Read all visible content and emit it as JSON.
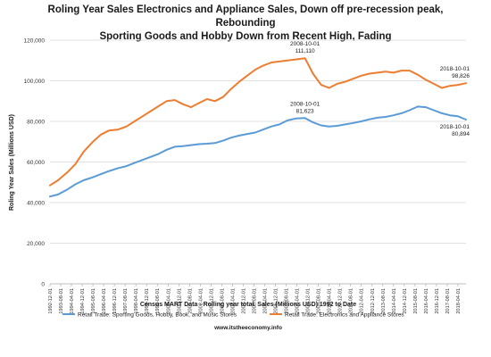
{
  "chart_data": {
    "type": "line",
    "title_line1": "Roling Year Sales Electronics and Appliance Sales, Down off pre-recession peak, Rebounding",
    "title_line2": "Sporting Goods and Hobby Down from Recent High, Fading",
    "xlabel": "Census MART Data - Rolling year total. Sales (Millions USD) 1992 to Date",
    "ylabel": "Roling Year Sales (Millions USD)",
    "source": "www.itstheeconomy.info",
    "ylim": [
      0,
      120000
    ],
    "y_ticks": [
      "0",
      "20,000",
      "40,000",
      "60,000",
      "80,000",
      "100,000",
      "120,000"
    ],
    "y_tick_values": [
      0,
      20000,
      40000,
      60000,
      80000,
      100000,
      120000
    ],
    "x_range": [
      "1992-12-01",
      "2018-10-01"
    ],
    "x_ticks": [
      "1992-12-01",
      "1993-08-01",
      "1994-04-01",
      "1994-12-01",
      "1995-08-01",
      "1996-04-01",
      "1996-12-01",
      "1997-08-01",
      "1998-04-01",
      "1998-12-01",
      "1999-08-01",
      "2000-04-01",
      "2000-12-01",
      "2001-08-01",
      "2002-04-01",
      "2002-12-01",
      "2003-08-01",
      "2004-04-01",
      "2004-12-01",
      "2005-08-01",
      "2006-04-01",
      "2006-12-01",
      "2007-08-01",
      "2008-04-01",
      "2008-12-01",
      "2009-08-01",
      "2010-04-01",
      "2010-12-01",
      "2011-08-01",
      "2012-04-01",
      "2012-12-01",
      "2013-08-01",
      "2014-04-01",
      "2014-12-01",
      "2015-08-01",
      "2016-04-01",
      "2016-12-01",
      "2017-08-01",
      "2018-04-01"
    ],
    "grid": "horizontal",
    "legend_placement": "bottom",
    "series": [
      {
        "name": "Retail Trade: Sporting Goods, Hobby, Book, and Music Stores",
        "color": "#5b9bd5",
        "points": [
          [
            "1992-12-01",
            43000
          ],
          [
            "1993-06-01",
            44000
          ],
          [
            "1994-01-01",
            46500
          ],
          [
            "1994-07-01",
            49000
          ],
          [
            "1995-01-01",
            51000
          ],
          [
            "1995-08-01",
            52500
          ],
          [
            "1996-02-01",
            54000
          ],
          [
            "1996-08-01",
            55500
          ],
          [
            "1997-03-01",
            57000
          ],
          [
            "1997-09-01",
            58000
          ],
          [
            "1998-03-01",
            59500
          ],
          [
            "1998-09-01",
            61000
          ],
          [
            "1999-03-01",
            62500
          ],
          [
            "1999-09-01",
            64000
          ],
          [
            "2000-03-01",
            66000
          ],
          [
            "2000-09-01",
            67500
          ],
          [
            "2001-03-01",
            67800
          ],
          [
            "2001-09-01",
            68300
          ],
          [
            "2002-03-01",
            68800
          ],
          [
            "2002-09-01",
            69000
          ],
          [
            "2003-03-01",
            69300
          ],
          [
            "2003-09-01",
            70500
          ],
          [
            "2004-03-01",
            72000
          ],
          [
            "2004-09-01",
            73000
          ],
          [
            "2005-03-01",
            73800
          ],
          [
            "2005-09-01",
            74500
          ],
          [
            "2006-03-01",
            76000
          ],
          [
            "2006-09-01",
            77500
          ],
          [
            "2007-03-01",
            78500
          ],
          [
            "2007-09-01",
            80500
          ],
          [
            "2008-03-01",
            81400
          ],
          [
            "2008-10-01",
            81623
          ],
          [
            "2009-04-01",
            79500
          ],
          [
            "2009-10-01",
            78000
          ],
          [
            "2010-04-01",
            77500
          ],
          [
            "2010-10-01",
            77800
          ],
          [
            "2011-04-01",
            78500
          ],
          [
            "2011-10-01",
            79200
          ],
          [
            "2012-04-01",
            80000
          ],
          [
            "2012-10-01",
            81000
          ],
          [
            "2013-04-01",
            81800
          ],
          [
            "2013-10-01",
            82200
          ],
          [
            "2014-04-01",
            83000
          ],
          [
            "2014-10-01",
            84000
          ],
          [
            "2015-04-01",
            85500
          ],
          [
            "2015-10-01",
            87300
          ],
          [
            "2016-04-01",
            87000
          ],
          [
            "2016-10-01",
            85500
          ],
          [
            "2017-04-01",
            84000
          ],
          [
            "2017-10-01",
            83000
          ],
          [
            "2018-04-01",
            82500
          ],
          [
            "2018-10-01",
            80894
          ]
        ]
      },
      {
        "name": "Retail Trade: Electronics and Appliance Stores",
        "color": "#ed7d31",
        "points": [
          [
            "1992-12-01",
            48500
          ],
          [
            "1993-06-01",
            51000
          ],
          [
            "1994-01-01",
            55000
          ],
          [
            "1994-07-01",
            59000
          ],
          [
            "1995-01-01",
            65000
          ],
          [
            "1995-08-01",
            70000
          ],
          [
            "1996-02-01",
            73500
          ],
          [
            "1996-08-01",
            75500
          ],
          [
            "1997-03-01",
            76000
          ],
          [
            "1997-09-01",
            77500
          ],
          [
            "1998-03-01",
            80000
          ],
          [
            "1998-09-01",
            82500
          ],
          [
            "1999-03-01",
            85000
          ],
          [
            "1999-09-01",
            87500
          ],
          [
            "2000-03-01",
            90000
          ],
          [
            "2000-09-01",
            90500
          ],
          [
            "2001-03-01",
            88500
          ],
          [
            "2001-09-01",
            87000
          ],
          [
            "2002-03-01",
            89000
          ],
          [
            "2002-09-01",
            91000
          ],
          [
            "2003-03-01",
            90000
          ],
          [
            "2003-09-01",
            92000
          ],
          [
            "2004-03-01",
            96000
          ],
          [
            "2004-09-01",
            99500
          ],
          [
            "2005-03-01",
            102500
          ],
          [
            "2005-09-01",
            105500
          ],
          [
            "2006-03-01",
            107500
          ],
          [
            "2006-09-01",
            109000
          ],
          [
            "2007-03-01",
            109500
          ],
          [
            "2007-09-01",
            110000
          ],
          [
            "2008-03-01",
            110500
          ],
          [
            "2008-10-01",
            111110
          ],
          [
            "2009-04-01",
            103500
          ],
          [
            "2009-10-01",
            98000
          ],
          [
            "2010-04-01",
            96500
          ],
          [
            "2010-10-01",
            98500
          ],
          [
            "2011-04-01",
            99500
          ],
          [
            "2011-10-01",
            101000
          ],
          [
            "2012-04-01",
            102500
          ],
          [
            "2012-10-01",
            103500
          ],
          [
            "2013-04-01",
            104000
          ],
          [
            "2013-10-01",
            104500
          ],
          [
            "2014-04-01",
            104000
          ],
          [
            "2014-10-01",
            105000
          ],
          [
            "2015-04-01",
            105000
          ],
          [
            "2015-10-01",
            103000
          ],
          [
            "2016-04-01",
            100500
          ],
          [
            "2016-10-01",
            98500
          ],
          [
            "2017-04-01",
            96500
          ],
          [
            "2017-10-01",
            97500
          ],
          [
            "2018-04-01",
            98000
          ],
          [
            "2018-10-01",
            98826
          ]
        ]
      }
    ],
    "annotations": [
      {
        "date": "2008-10-01",
        "value_label": "111,110",
        "series": 1,
        "value": 111110
      },
      {
        "date": "2008-10-01",
        "value_label": "81,623",
        "series": 0,
        "value": 81623
      },
      {
        "date": "2018-10-01",
        "value_label": "98,826",
        "series": 1,
        "value": 98826
      },
      {
        "date": "2018-10-01",
        "value_label": "80,894",
        "series": 0,
        "value": 80894
      }
    ]
  }
}
